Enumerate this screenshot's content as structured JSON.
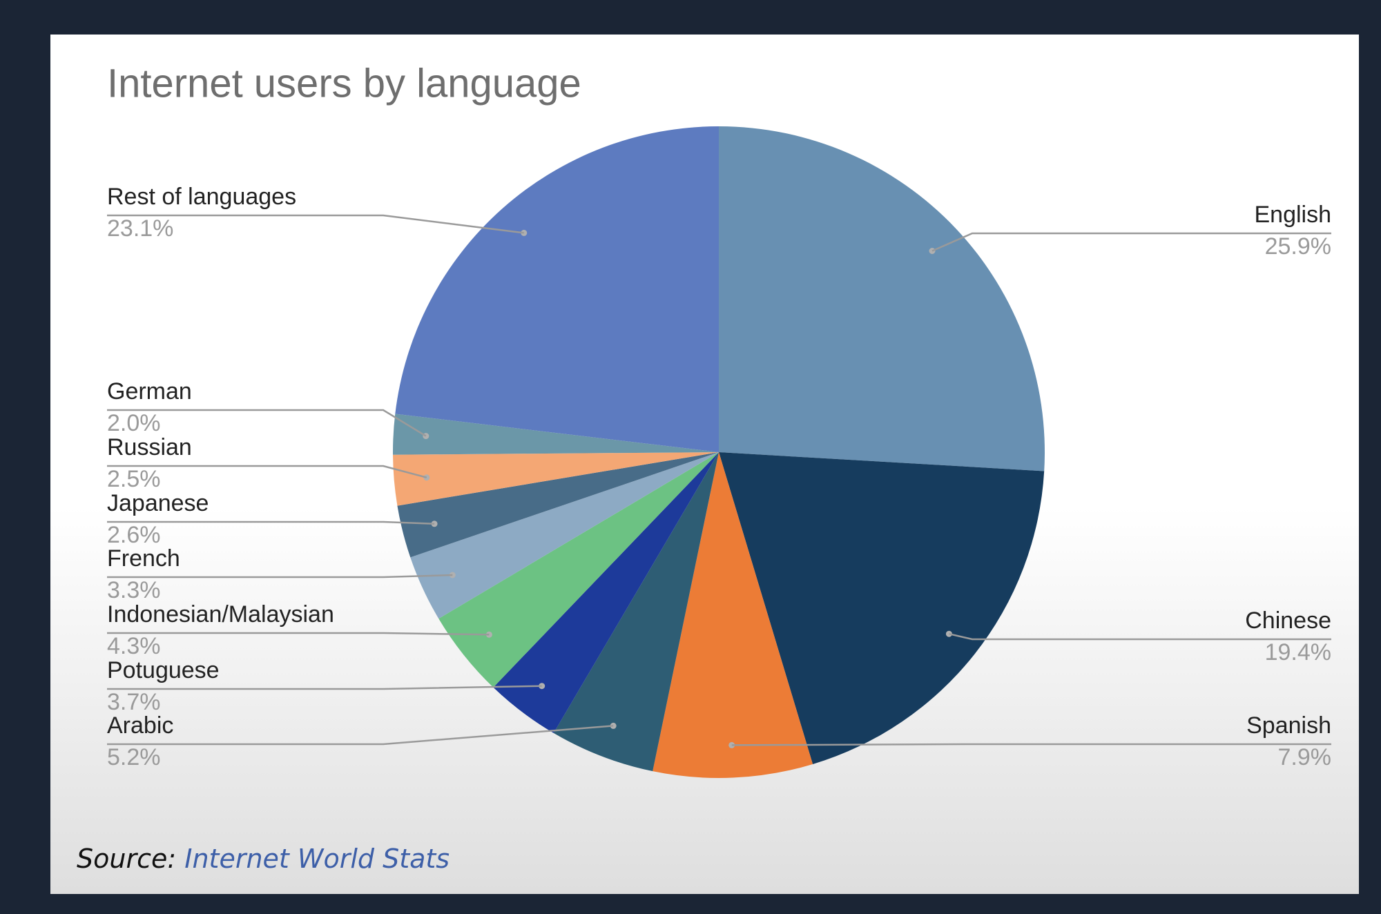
{
  "chart_data": {
    "type": "pie",
    "title": "Internet users by language",
    "slices": [
      {
        "label": "English",
        "value": 25.9,
        "display": "25.9%",
        "color": "#6890b2"
      },
      {
        "label": "Chinese",
        "value": 19.4,
        "display": "19.4%",
        "color": "#163c5e"
      },
      {
        "label": "Spanish",
        "value": 7.9,
        "display": "7.9%",
        "color": "#ec7c36"
      },
      {
        "label": "Arabic",
        "value": 5.2,
        "display": "5.2%",
        "color": "#2e5d74"
      },
      {
        "label": "Potuguese",
        "value": 3.7,
        "display": "3.7%",
        "color": "#1d3a9a"
      },
      {
        "label": "Indonesian/Malaysian",
        "value": 4.3,
        "display": "4.3%",
        "color": "#6cc283"
      },
      {
        "label": "French",
        "value": 3.3,
        "display": "3.3%",
        "color": "#8daac4"
      },
      {
        "label": "Japanese",
        "value": 2.6,
        "display": "2.6%",
        "color": "#486c88"
      },
      {
        "label": "Russian",
        "value": 2.5,
        "display": "2.5%",
        "color": "#f4a774"
      },
      {
        "label": "German",
        "value": 2.0,
        "display": "2.0%",
        "color": "#6b97a8"
      },
      {
        "label": "Rest of languages",
        "value": 23.1,
        "display": "23.1%",
        "color": "#5d7bc0"
      }
    ],
    "start_angle_deg": 0,
    "direction": "clockwise",
    "legend": "none (leader-line labels)"
  },
  "source": {
    "prefix": "Source:",
    "name": "Internet World Stats"
  }
}
